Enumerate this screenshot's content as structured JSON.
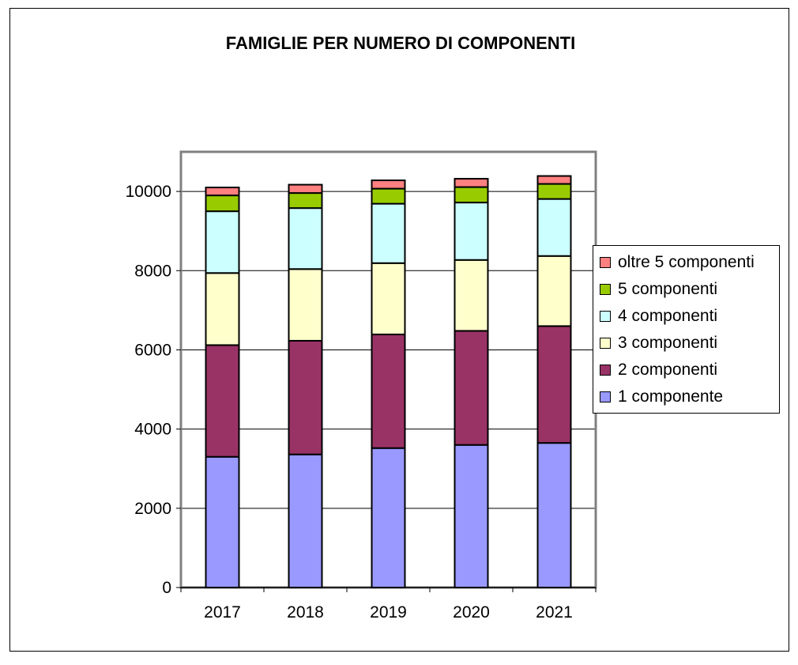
{
  "chart_data": {
    "type": "bar",
    "stacked": true,
    "title": "FAMIGLIE PER NUMERO DI COMPONENTI",
    "xlabel": "",
    "ylabel": "",
    "categories": [
      "2017",
      "2018",
      "2019",
      "2020",
      "2021"
    ],
    "ylim": [
      0,
      11000
    ],
    "yticks": [
      0,
      2000,
      4000,
      6000,
      8000,
      10000
    ],
    "grid": true,
    "legend": "right",
    "series": [
      {
        "name": "1 componente",
        "color": "#9999ff",
        "values": [
          3300,
          3360,
          3520,
          3600,
          3650
        ]
      },
      {
        "name": "2 componenti",
        "color": "#993366",
        "values": [
          2820,
          2870,
          2870,
          2880,
          2950
        ]
      },
      {
        "name": "3 componenti",
        "color": "#ffffcc",
        "values": [
          1820,
          1810,
          1800,
          1790,
          1770
        ]
      },
      {
        "name": "4 componenti",
        "color": "#ccffff",
        "values": [
          1560,
          1540,
          1500,
          1450,
          1440
        ]
      },
      {
        "name": "5 componenti",
        "color": "#99cc00",
        "values": [
          400,
          380,
          380,
          390,
          380
        ]
      },
      {
        "name": "oltre 5 componenti",
        "color": "#ff8080",
        "values": [
          200,
          210,
          210,
          210,
          200
        ]
      }
    ]
  }
}
